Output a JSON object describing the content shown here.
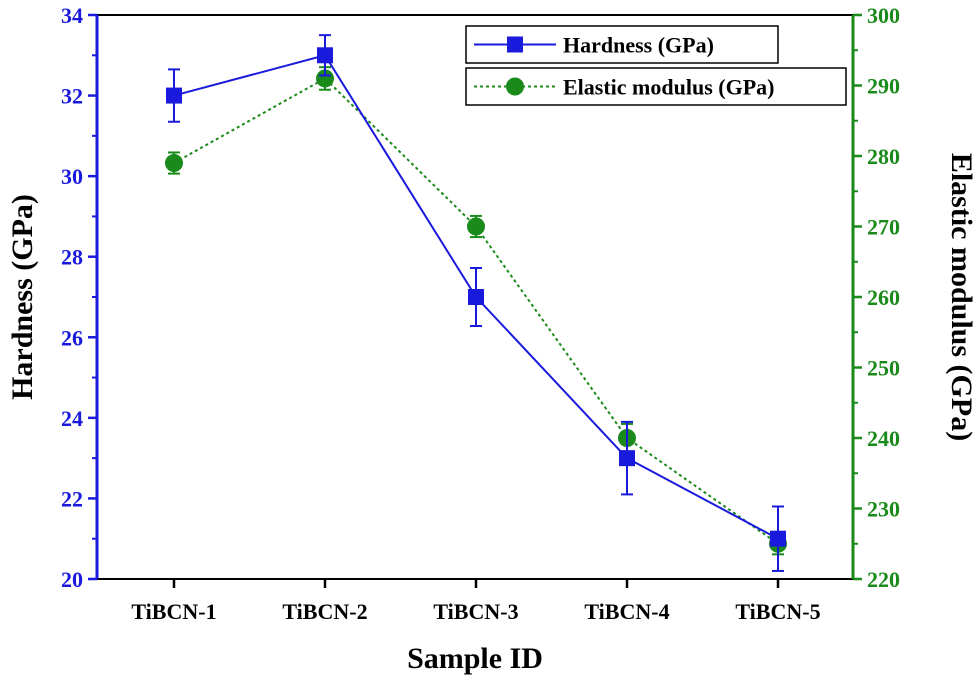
{
  "chart_data": {
    "type": "line",
    "title": "",
    "xlabel": "Sample ID",
    "categories": [
      "TiBCN-1",
      "TiBCN-2",
      "TiBCN-3",
      "TiBCN-4",
      "TiBCN-5"
    ],
    "y_left": {
      "label": "Hardness (GPa)",
      "range": [
        20,
        34
      ],
      "ticks": [
        20,
        22,
        24,
        26,
        28,
        30,
        32,
        34
      ],
      "color": "#1a1adc"
    },
    "y_right": {
      "label": "Elastic modulus (GPa)",
      "range": [
        220,
        300
      ],
      "ticks": [
        220,
        230,
        240,
        250,
        260,
        270,
        280,
        290,
        300
      ],
      "color": "#1a8a1a"
    },
    "series": [
      {
        "name": "Hardness (GPa)",
        "axis": "left",
        "values": [
          32.0,
          33.0,
          27.0,
          23.0,
          21.0
        ],
        "errors": [
          0.65,
          0.5,
          0.72,
          0.9,
          0.8
        ],
        "marker": "square",
        "line_style": "solid",
        "color": "#1a1adc"
      },
      {
        "name": "Elastic modulus (GPa)",
        "axis": "right",
        "values": [
          279,
          291,
          270,
          240,
          225
        ],
        "errors": [
          1.5,
          1.6,
          1.5,
          2.0,
          1.5
        ],
        "marker": "circle",
        "line_style": "dotted",
        "color": "#1a8a1a"
      }
    ],
    "legend": {
      "position": "top-right"
    }
  }
}
